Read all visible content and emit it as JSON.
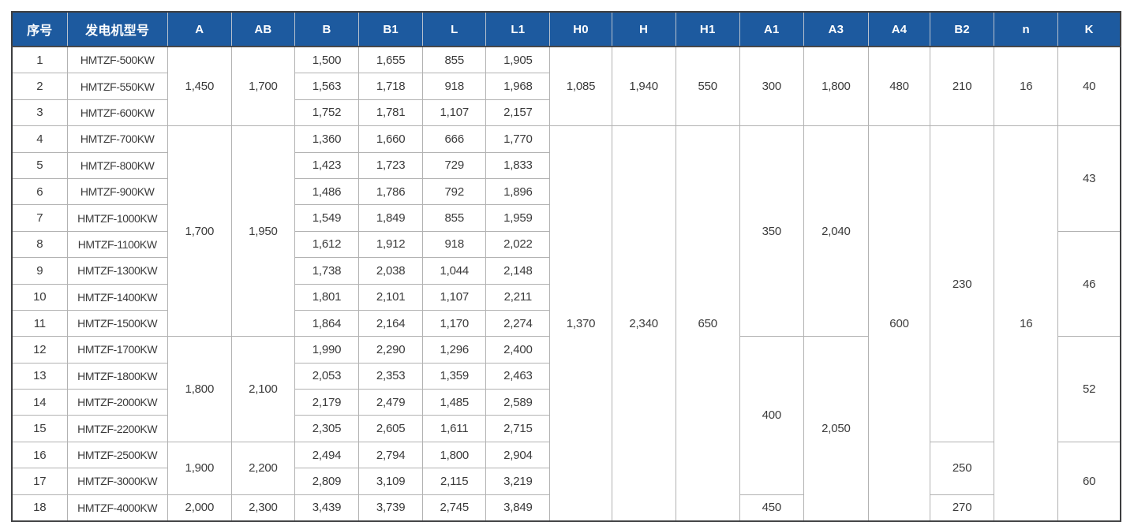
{
  "colors": {
    "header_bg": "#1d5a9f",
    "header_text": "#ffffff",
    "grid_line": "#b2b2b2",
    "frame": "#3d3e40",
    "body_text": "#3b3b3b"
  },
  "table": {
    "columns": [
      {
        "key": "no",
        "label": "序号"
      },
      {
        "key": "model",
        "label": "发电机型号"
      },
      {
        "key": "A",
        "label": "A"
      },
      {
        "key": "AB",
        "label": "AB"
      },
      {
        "key": "B",
        "label": "B"
      },
      {
        "key": "B1",
        "label": "B1"
      },
      {
        "key": "L",
        "label": "L"
      },
      {
        "key": "L1",
        "label": "L1"
      },
      {
        "key": "H0",
        "label": "H0"
      },
      {
        "key": "H",
        "label": "H"
      },
      {
        "key": "H1",
        "label": "H1"
      },
      {
        "key": "A1",
        "label": "A1"
      },
      {
        "key": "A3",
        "label": "A3"
      },
      {
        "key": "A4",
        "label": "A4"
      },
      {
        "key": "B2",
        "label": "B2"
      },
      {
        "key": "n",
        "label": "n"
      },
      {
        "key": "K",
        "label": "K"
      }
    ],
    "rows": [
      {
        "cells": [
          {
            "col": "no",
            "v": "1"
          },
          {
            "col": "model",
            "v": "HMTZF-500KW"
          },
          {
            "col": "A",
            "v": "1,450",
            "rs": 3
          },
          {
            "col": "AB",
            "v": "1,700",
            "rs": 3
          },
          {
            "col": "B",
            "v": "1,500"
          },
          {
            "col": "B1",
            "v": "1,655"
          },
          {
            "col": "L",
            "v": "855"
          },
          {
            "col": "L1",
            "v": "1,905"
          },
          {
            "col": "H0",
            "v": "1,085",
            "rs": 3
          },
          {
            "col": "H",
            "v": "1,940",
            "rs": 3
          },
          {
            "col": "H1",
            "v": "550",
            "rs": 3
          },
          {
            "col": "A1",
            "v": "300",
            "rs": 3
          },
          {
            "col": "A3",
            "v": "1,800",
            "rs": 3
          },
          {
            "col": "A4",
            "v": "480",
            "rs": 3
          },
          {
            "col": "B2",
            "v": "210",
            "rs": 3
          },
          {
            "col": "n",
            "v": "16",
            "rs": 3
          },
          {
            "col": "K",
            "v": "40",
            "rs": 3
          }
        ]
      },
      {
        "cells": [
          {
            "col": "no",
            "v": "2"
          },
          {
            "col": "model",
            "v": "HMTZF-550KW"
          },
          {
            "col": "B",
            "v": "1,563"
          },
          {
            "col": "B1",
            "v": "1,718"
          },
          {
            "col": "L",
            "v": "918"
          },
          {
            "col": "L1",
            "v": "1,968"
          }
        ]
      },
      {
        "cells": [
          {
            "col": "no",
            "v": "3"
          },
          {
            "col": "model",
            "v": "HMTZF-600KW"
          },
          {
            "col": "B",
            "v": "1,752"
          },
          {
            "col": "B1",
            "v": "1,781"
          },
          {
            "col": "L",
            "v": "1,107"
          },
          {
            "col": "L1",
            "v": "2,157"
          }
        ]
      },
      {
        "cells": [
          {
            "col": "no",
            "v": "4"
          },
          {
            "col": "model",
            "v": "HMTZF-700KW"
          },
          {
            "col": "A",
            "v": "1,700",
            "rs": 8
          },
          {
            "col": "AB",
            "v": "1,950",
            "rs": 8
          },
          {
            "col": "B",
            "v": "1,360"
          },
          {
            "col": "B1",
            "v": "1,660"
          },
          {
            "col": "L",
            "v": "666"
          },
          {
            "col": "L1",
            "v": "1,770"
          },
          {
            "col": "H0",
            "v": "1,370",
            "rs": 15
          },
          {
            "col": "H",
            "v": "2,340",
            "rs": 15
          },
          {
            "col": "H1",
            "v": "650",
            "rs": 15
          },
          {
            "col": "A1",
            "v": "350",
            "rs": 8
          },
          {
            "col": "A3",
            "v": "2,040",
            "rs": 8
          },
          {
            "col": "A4",
            "v": "600",
            "rs": 15
          },
          {
            "col": "B2",
            "v": "230",
            "rs": 12
          },
          {
            "col": "n",
            "v": "16",
            "rs": 15
          },
          {
            "col": "K",
            "v": "43",
            "rs": 4
          }
        ]
      },
      {
        "cells": [
          {
            "col": "no",
            "v": "5"
          },
          {
            "col": "model",
            "v": "HMTZF-800KW"
          },
          {
            "col": "B",
            "v": "1,423"
          },
          {
            "col": "B1",
            "v": "1,723"
          },
          {
            "col": "L",
            "v": "729"
          },
          {
            "col": "L1",
            "v": "1,833"
          }
        ]
      },
      {
        "cells": [
          {
            "col": "no",
            "v": "6"
          },
          {
            "col": "model",
            "v": "HMTZF-900KW"
          },
          {
            "col": "B",
            "v": "1,486"
          },
          {
            "col": "B1",
            "v": "1,786"
          },
          {
            "col": "L",
            "v": "792"
          },
          {
            "col": "L1",
            "v": "1,896"
          }
        ]
      },
      {
        "cells": [
          {
            "col": "no",
            "v": "7"
          },
          {
            "col": "model",
            "v": "HMTZF-1000KW"
          },
          {
            "col": "B",
            "v": "1,549"
          },
          {
            "col": "B1",
            "v": "1,849"
          },
          {
            "col": "L",
            "v": "855"
          },
          {
            "col": "L1",
            "v": "1,959"
          }
        ]
      },
      {
        "cells": [
          {
            "col": "no",
            "v": "8"
          },
          {
            "col": "model",
            "v": "HMTZF-1100KW"
          },
          {
            "col": "B",
            "v": "1,612"
          },
          {
            "col": "B1",
            "v": "1,912"
          },
          {
            "col": "L",
            "v": "918"
          },
          {
            "col": "L1",
            "v": "2,022"
          },
          {
            "col": "K",
            "v": "46",
            "rs": 4
          }
        ]
      },
      {
        "cells": [
          {
            "col": "no",
            "v": "9"
          },
          {
            "col": "model",
            "v": "HMTZF-1300KW"
          },
          {
            "col": "B",
            "v": "1,738"
          },
          {
            "col": "B1",
            "v": "2,038"
          },
          {
            "col": "L",
            "v": "1,044"
          },
          {
            "col": "L1",
            "v": "2,148"
          }
        ]
      },
      {
        "cells": [
          {
            "col": "no",
            "v": "10"
          },
          {
            "col": "model",
            "v": "HMTZF-1400KW"
          },
          {
            "col": "B",
            "v": "1,801"
          },
          {
            "col": "B1",
            "v": "2,101"
          },
          {
            "col": "L",
            "v": "1,107"
          },
          {
            "col": "L1",
            "v": "2,211"
          }
        ]
      },
      {
        "cells": [
          {
            "col": "no",
            "v": "11"
          },
          {
            "col": "model",
            "v": "HMTZF-1500KW"
          },
          {
            "col": "B",
            "v": "1,864"
          },
          {
            "col": "B1",
            "v": "2,164"
          },
          {
            "col": "L",
            "v": "1,170"
          },
          {
            "col": "L1",
            "v": "2,274"
          }
        ]
      },
      {
        "cells": [
          {
            "col": "no",
            "v": "12"
          },
          {
            "col": "model",
            "v": "HMTZF-1700KW"
          },
          {
            "col": "A",
            "v": "1,800",
            "rs": 4
          },
          {
            "col": "AB",
            "v": "2,100",
            "rs": 4
          },
          {
            "col": "B",
            "v": "1,990"
          },
          {
            "col": "B1",
            "v": "2,290"
          },
          {
            "col": "L",
            "v": "1,296"
          },
          {
            "col": "L1",
            "v": "2,400"
          },
          {
            "col": "A1",
            "v": "400",
            "rs": 6
          },
          {
            "col": "A3",
            "v": "2,050",
            "rs": 7
          },
          {
            "col": "K",
            "v": "52",
            "rs": 4
          }
        ]
      },
      {
        "cells": [
          {
            "col": "no",
            "v": "13"
          },
          {
            "col": "model",
            "v": "HMTZF-1800KW"
          },
          {
            "col": "B",
            "v": "2,053"
          },
          {
            "col": "B1",
            "v": "2,353"
          },
          {
            "col": "L",
            "v": "1,359"
          },
          {
            "col": "L1",
            "v": "2,463"
          }
        ]
      },
      {
        "cells": [
          {
            "col": "no",
            "v": "14"
          },
          {
            "col": "model",
            "v": "HMTZF-2000KW"
          },
          {
            "col": "B",
            "v": "2,179"
          },
          {
            "col": "B1",
            "v": "2,479"
          },
          {
            "col": "L",
            "v": "1,485"
          },
          {
            "col": "L1",
            "v": "2,589"
          }
        ]
      },
      {
        "cells": [
          {
            "col": "no",
            "v": "15"
          },
          {
            "col": "model",
            "v": "HMTZF-2200KW"
          },
          {
            "col": "B",
            "v": "2,305"
          },
          {
            "col": "B1",
            "v": "2,605"
          },
          {
            "col": "L",
            "v": "1,611"
          },
          {
            "col": "L1",
            "v": "2,715"
          }
        ]
      },
      {
        "cells": [
          {
            "col": "no",
            "v": "16"
          },
          {
            "col": "model",
            "v": "HMTZF-2500KW"
          },
          {
            "col": "A",
            "v": "1,900",
            "rs": 2
          },
          {
            "col": "AB",
            "v": "2,200",
            "rs": 2
          },
          {
            "col": "B",
            "v": "2,494"
          },
          {
            "col": "B1",
            "v": "2,794"
          },
          {
            "col": "L",
            "v": "1,800"
          },
          {
            "col": "L1",
            "v": "2,904"
          },
          {
            "col": "B2",
            "v": "250",
            "rs": 2
          },
          {
            "col": "K",
            "v": "60",
            "rs": 3
          }
        ]
      },
      {
        "cells": [
          {
            "col": "no",
            "v": "17"
          },
          {
            "col": "model",
            "v": "HMTZF-3000KW"
          },
          {
            "col": "B",
            "v": "2,809"
          },
          {
            "col": "B1",
            "v": "3,109"
          },
          {
            "col": "L",
            "v": "2,115"
          },
          {
            "col": "L1",
            "v": "3,219"
          }
        ]
      },
      {
        "cells": [
          {
            "col": "no",
            "v": "18"
          },
          {
            "col": "model",
            "v": "HMTZF-4000KW"
          },
          {
            "col": "A",
            "v": "2,000"
          },
          {
            "col": "AB",
            "v": "2,300"
          },
          {
            "col": "B",
            "v": "3,439"
          },
          {
            "col": "B1",
            "v": "3,739"
          },
          {
            "col": "L",
            "v": "2,745"
          },
          {
            "col": "L1",
            "v": "3,849"
          },
          {
            "col": "A1",
            "v": "450"
          },
          {
            "col": "B2",
            "v": "270"
          }
        ]
      }
    ]
  }
}
